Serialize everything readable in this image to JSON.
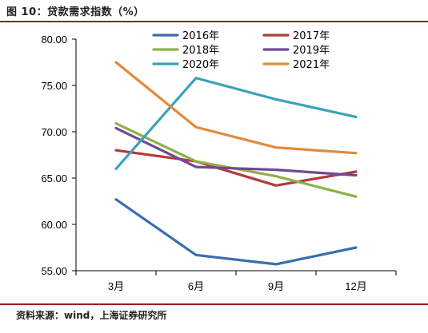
{
  "figure": {
    "title": "图 10：贷款需求指数（%）",
    "source": "资料来源：wind，上海证券研究所"
  },
  "chart_data": {
    "type": "line",
    "title": "",
    "xlabel": "",
    "ylabel": "",
    "categories": [
      "3月",
      "6月",
      "9月",
      "12月"
    ],
    "ylim": [
      55,
      80
    ],
    "yticks": [
      "55.00",
      "60.00",
      "65.00",
      "70.00",
      "75.00",
      "80.00"
    ],
    "grid": false,
    "legend_position": "top-center",
    "series": [
      {
        "name": "2016年",
        "color": "#3c6db1",
        "values": [
          62.7,
          56.7,
          55.7,
          57.5
        ]
      },
      {
        "name": "2017年",
        "color": "#b33a3a",
        "values": [
          68.0,
          66.8,
          64.2,
          65.7
        ]
      },
      {
        "name": "2018年",
        "color": "#8cb04a",
        "values": [
          70.9,
          66.8,
          65.2,
          63.0
        ]
      },
      {
        "name": "2019年",
        "color": "#6f4a96",
        "values": [
          70.4,
          66.2,
          65.9,
          65.3
        ]
      },
      {
        "name": "2020年",
        "color": "#3aa3ba",
        "values": [
          66.0,
          75.8,
          73.5,
          71.6
        ]
      },
      {
        "name": "2021年",
        "color": "#e08a3c",
        "values": [
          77.5,
          70.5,
          68.3,
          67.7
        ]
      }
    ]
  }
}
